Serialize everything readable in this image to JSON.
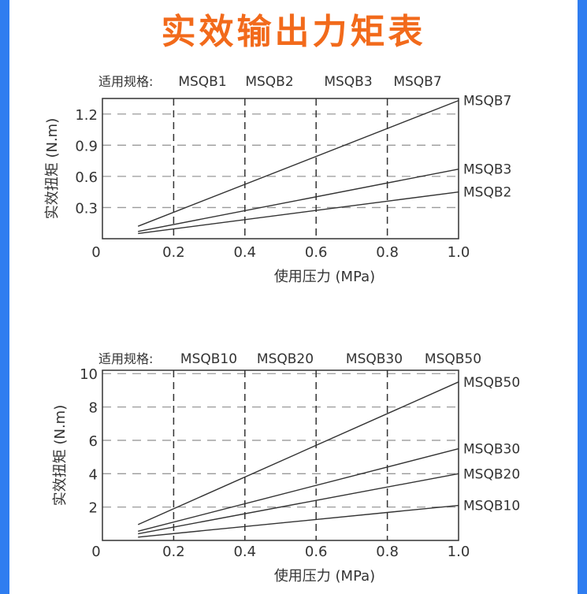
{
  "page": {
    "title": "实效输出力矩表"
  },
  "colors": {
    "frame": "#2f7df0",
    "title": "#f26a1b",
    "line": "#333333",
    "grid": "#888888"
  },
  "chart_data": [
    {
      "type": "line",
      "header_label": "适用规格:",
      "header_models": [
        "MSQB1",
        "MSQB2",
        "MSQB3",
        "MSQB7"
      ],
      "xlabel": "使用压力 (MPa)",
      "ylabel": "实效扭矩 (N.m)",
      "x_origin_label": "0",
      "xlim": [
        0,
        1.0
      ],
      "ylim": [
        0,
        1.35
      ],
      "x_ticks": [
        0.2,
        0.4,
        0.6,
        0.8,
        1.0
      ],
      "x_tick_labels": [
        "0.2",
        "0.4",
        "0.6",
        "0.8",
        "1.0"
      ],
      "y_ticks": [
        0.3,
        0.6,
        0.9,
        1.2
      ],
      "y_tick_labels": [
        "0.3",
        "0.6",
        "0.9",
        "1.2"
      ],
      "grid": true,
      "series": [
        {
          "name": "MSQB7",
          "x": [
            0.1,
            1.0
          ],
          "y": [
            0.12,
            1.33
          ]
        },
        {
          "name": "MSQB3",
          "x": [
            0.1,
            1.0
          ],
          "y": [
            0.07,
            0.67
          ]
        },
        {
          "name": "MSQB2",
          "x": [
            0.1,
            1.0
          ],
          "y": [
            0.05,
            0.45
          ]
        }
      ]
    },
    {
      "type": "line",
      "header_label": "适用规格:",
      "header_models": [
        "MSQB10",
        "MSQB20",
        "MSQB30",
        "MSQB50"
      ],
      "xlabel": "使用压力 (MPa)",
      "ylabel": "实效扭矩 (N.m)",
      "x_origin_label": "0",
      "xlim": [
        0,
        1.0
      ],
      "ylim": [
        0,
        10.2
      ],
      "x_ticks": [
        0.2,
        0.4,
        0.6,
        0.8,
        1.0
      ],
      "x_tick_labels": [
        "0.2",
        "0.4",
        "0.6",
        "0.8",
        "1.0"
      ],
      "y_ticks": [
        2,
        4,
        6,
        8,
        10
      ],
      "y_tick_labels": [
        "2",
        "4",
        "6",
        "8",
        "10"
      ],
      "grid": true,
      "series": [
        {
          "name": "MSQB50",
          "x": [
            0.1,
            1.0
          ],
          "y": [
            0.95,
            9.5
          ]
        },
        {
          "name": "MSQB30",
          "x": [
            0.1,
            1.0
          ],
          "y": [
            0.55,
            5.5
          ]
        },
        {
          "name": "MSQB20",
          "x": [
            0.1,
            1.0
          ],
          "y": [
            0.4,
            4.0
          ]
        },
        {
          "name": "MSQB10",
          "x": [
            0.1,
            1.0
          ],
          "y": [
            0.2,
            2.1
          ]
        }
      ]
    }
  ]
}
